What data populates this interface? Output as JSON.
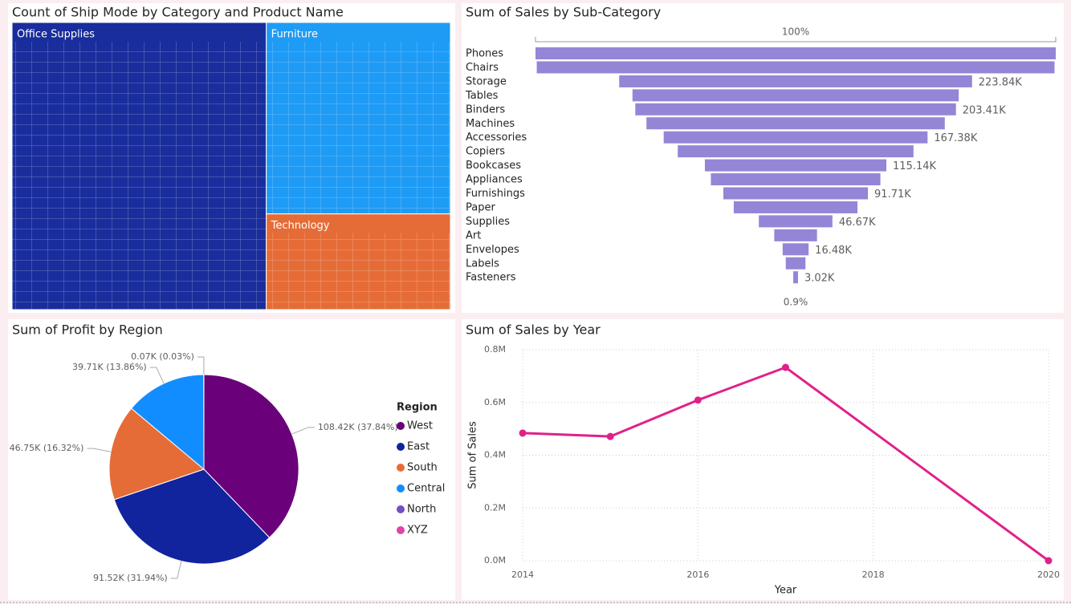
{
  "chart_data": [
    {
      "type": "treemap",
      "title": "Count of Ship Mode by Category and Product Name",
      "categories": [
        "Office Supplies",
        "Furniture",
        "Technology"
      ],
      "values": [
        58,
        28,
        14
      ],
      "colors": [
        "#1a2d9c",
        "#1e9bf5",
        "#e66c37"
      ]
    },
    {
      "type": "funnel",
      "title": "Sum of Sales by Sub-Category",
      "top_label": "100%",
      "bottom_label": "0.9%",
      "categories": [
        "Phones",
        "Chairs",
        "Storage",
        "Tables",
        "Binders",
        "Machines",
        "Accessories",
        "Copiers",
        "Bookcases",
        "Appliances",
        "Furnishings",
        "Paper",
        "Supplies",
        "Art",
        "Envelopes",
        "Labels",
        "Fasteners"
      ],
      "values": [
        330.01,
        328.45,
        223.84,
        206.97,
        203.41,
        189.24,
        167.38,
        149.53,
        115.14,
        107.53,
        91.71,
        78.48,
        46.67,
        27.12,
        16.48,
        12.49,
        3.02
      ],
      "value_labels": [
        null,
        null,
        "223.84K",
        null,
        "203.41K",
        null,
        "167.38K",
        null,
        "115.14K",
        null,
        "91.71K",
        null,
        "46.67K",
        null,
        "16.48K",
        null,
        "3.02K"
      ],
      "color": "#9585d6"
    },
    {
      "type": "pie",
      "title": "Sum of Profit by Region",
      "legend_title": "Region",
      "categories": [
        "West",
        "East",
        "South",
        "Central",
        "North",
        "XYZ"
      ],
      "values": [
        108.42,
        91.52,
        46.75,
        39.71,
        0.07,
        0
      ],
      "value_labels": [
        "108.42K (37.84%)",
        "91.52K (31.94%)",
        "46.75K (16.32%)",
        "39.71K (13.86%)",
        "0.07K (0.03%)",
        null
      ],
      "colors": [
        "#6b007b",
        "#12239e",
        "#e66c37",
        "#118dff",
        "#744ec2",
        "#e044a7"
      ]
    },
    {
      "type": "line",
      "title": "Sum of Sales by Year",
      "x_label": "Year",
      "y_label": "Sum of Sales",
      "x": [
        2014,
        2015,
        2016,
        2017,
        2020
      ],
      "values": [
        0.484,
        0.471,
        0.609,
        0.733,
        0
      ],
      "color": "#e0218a",
      "xlim": [
        2014,
        2020
      ],
      "xticks": [
        2014,
        2016,
        2018,
        2020
      ],
      "ylim": [
        0,
        0.8
      ],
      "yticks": [
        {
          "value": 0,
          "label": "0.0M"
        },
        {
          "value": 0.2,
          "label": "0.2M"
        },
        {
          "value": 0.4,
          "label": "0.4M"
        },
        {
          "value": 0.6,
          "label": "0.6M"
        },
        {
          "value": 0.8,
          "label": "0.8M"
        }
      ],
      "grid": true
    }
  ]
}
